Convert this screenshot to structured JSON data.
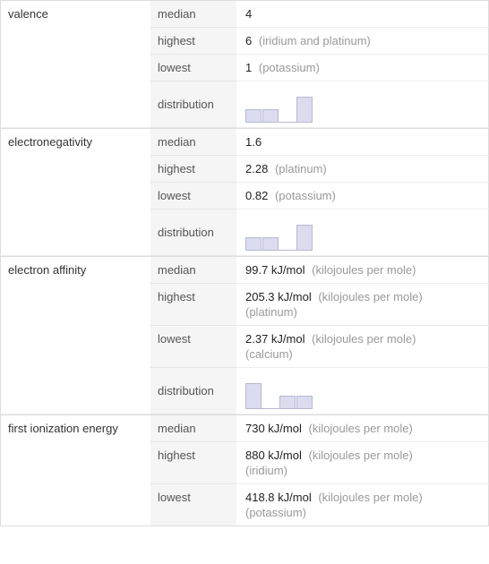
{
  "properties": [
    {
      "name": "valence",
      "rows": [
        {
          "stat": "median",
          "value": "4",
          "note": ""
        },
        {
          "stat": "highest",
          "value": "6",
          "note": "(iridium and platinum)"
        },
        {
          "stat": "lowest",
          "value": "1",
          "note": "(potassium)"
        }
      ],
      "distribution": {
        "label": "distribution",
        "bars": [
          14,
          14,
          0,
          28
        ],
        "bar_color": "#dcdcf0",
        "bar_border": "#b8b8d0"
      }
    },
    {
      "name": "electronegativity",
      "rows": [
        {
          "stat": "median",
          "value": "1.6",
          "note": ""
        },
        {
          "stat": "highest",
          "value": "2.28",
          "note": "(platinum)"
        },
        {
          "stat": "lowest",
          "value": "0.82",
          "note": "(potassium)"
        }
      ],
      "distribution": {
        "label": "distribution",
        "bars": [
          14,
          14,
          0,
          28
        ],
        "bar_color": "#dcdcf0",
        "bar_border": "#b8b8d0"
      }
    },
    {
      "name": "electron affinity",
      "rows": [
        {
          "stat": "median",
          "value": "99.7 kJ/mol",
          "note": "(kilojoules per mole)"
        },
        {
          "stat": "highest",
          "value": "205.3 kJ/mol",
          "note": "(kilojoules per mole)",
          "line2": "(platinum)"
        },
        {
          "stat": "lowest",
          "value": "2.37 kJ/mol",
          "note": "(kilojoules per mole)",
          "line2": "(calcium)"
        }
      ],
      "distribution": {
        "label": "distribution",
        "bars": [
          28,
          0,
          14,
          14
        ],
        "bar_color": "#dcdcf0",
        "bar_border": "#b8b8d0"
      }
    },
    {
      "name": "first ionization energy",
      "rows": [
        {
          "stat": "median",
          "value": "730 kJ/mol",
          "note": "(kilojoules per mole)"
        },
        {
          "stat": "highest",
          "value": "880 kJ/mol",
          "note": "(kilojoules per mole)",
          "line2": "(iridium)"
        },
        {
          "stat": "lowest",
          "value": "418.8 kJ/mol",
          "note": "(kilojoules per mole)",
          "line2": "(potassium)"
        }
      ]
    }
  ]
}
